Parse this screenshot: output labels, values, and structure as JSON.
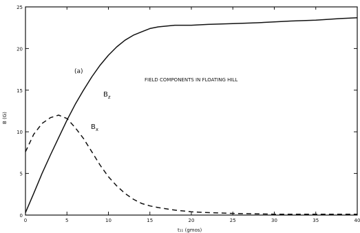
{
  "chart_data": {
    "type": "line",
    "panel_label": "(a)",
    "annotation": "FIELD COMPONENTS IN FLOATING HILL",
    "xlabel": "t₁₁ (gmos)",
    "ylabel": "B (G)",
    "xlim": [
      0,
      40
    ],
    "ylim": [
      0,
      25
    ],
    "grid": false,
    "x_ticks": [
      0,
      5,
      10,
      15,
      20,
      25,
      30,
      35,
      40
    ],
    "y_ticks": [
      0,
      5,
      10,
      15,
      20,
      25
    ],
    "x_tick_labels": [
      "0",
      "5",
      "10",
      "15",
      "20",
      "25",
      "30",
      "35",
      "40"
    ],
    "y_tick_labels": [
      "0",
      "5",
      "10",
      "15",
      "20",
      "25"
    ],
    "series": [
      {
        "name": "B_z",
        "style": "solid",
        "x": [
          0,
          1,
          2,
          3,
          4,
          5,
          6,
          7,
          8,
          9,
          10,
          11,
          12,
          13,
          14,
          15,
          16,
          18,
          20,
          22,
          25,
          28,
          30,
          32,
          35,
          38,
          40
        ],
        "y": [
          0.3,
          2.6,
          5.0,
          7.2,
          9.3,
          11.4,
          13.3,
          15.0,
          16.6,
          18.0,
          19.2,
          20.2,
          21.0,
          21.6,
          22.0,
          22.4,
          22.6,
          22.8,
          22.8,
          22.9,
          23.0,
          23.1,
          23.2,
          23.3,
          23.4,
          23.6,
          23.7
        ]
      },
      {
        "name": "B_x",
        "style": "dashed",
        "x": [
          0,
          1,
          2,
          3,
          4,
          5,
          6,
          7,
          8,
          9,
          10,
          11,
          12,
          13,
          14,
          15,
          16,
          18,
          20,
          22,
          25,
          28,
          30,
          33,
          36,
          40
        ],
        "y": [
          7.6,
          9.7,
          11.0,
          11.7,
          12.0,
          11.6,
          10.5,
          9.2,
          7.6,
          6.0,
          4.6,
          3.5,
          2.6,
          1.9,
          1.4,
          1.1,
          0.9,
          0.6,
          0.4,
          0.3,
          0.2,
          0.15,
          0.1,
          0.1,
          0.1,
          0.1
        ]
      }
    ],
    "series_labels": [
      "B_z",
      "B_x"
    ],
    "axis_color": "#111111",
    "line_color": "#111111"
  }
}
